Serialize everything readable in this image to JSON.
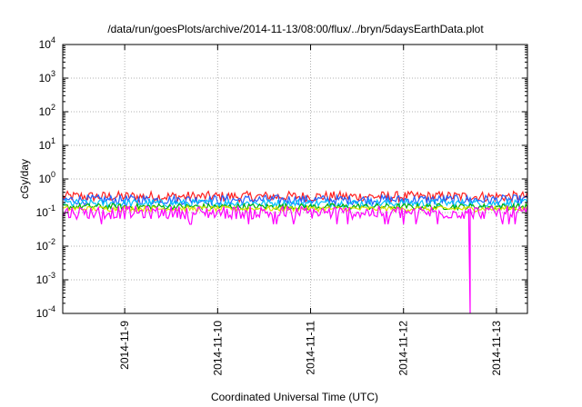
{
  "chart_data": {
    "type": "line",
    "title": "/data/run/goesPlots/archive/2014-11-13/08:00/flux/../bryn/5daysEarthData.plot",
    "xlabel": "Coordinated Universal Time (UTC)",
    "ylabel": "cGy/day",
    "yscale": "log",
    "ylim": [
      0.0001,
      10000
    ],
    "y_ticks": [
      {
        "value": 0.0001,
        "base": "10",
        "exp": "-4"
      },
      {
        "value": 0.001,
        "base": "10",
        "exp": "-3"
      },
      {
        "value": 0.01,
        "base": "10",
        "exp": "-2"
      },
      {
        "value": 0.1,
        "base": "10",
        "exp": "-1"
      },
      {
        "value": 1,
        "base": "10",
        "exp": "0"
      },
      {
        "value": 10,
        "base": "10",
        "exp": "1"
      },
      {
        "value": 100,
        "base": "10",
        "exp": "2"
      },
      {
        "value": 1000,
        "base": "10",
        "exp": "3"
      },
      {
        "value": 10000,
        "base": "10",
        "exp": "4"
      }
    ],
    "xlim": [
      "2014-11-08T08:00",
      "2014-11-13T08:00"
    ],
    "x_ticks": [
      "2014-11-9",
      "2014-11-10",
      "2014-11-11",
      "2014-11-12",
      "2014-11-13"
    ],
    "x_tick_times": [
      "2014-11-09T00:00",
      "2014-11-10T00:00",
      "2014-11-11T00:00",
      "2014-11-12T00:00",
      "2014-11-13T00:00"
    ],
    "grid": true,
    "legend": "none",
    "series": [
      {
        "color": "#ff2020",
        "level": 0.3,
        "spread": 0.12
      },
      {
        "color": "#2060ff",
        "level": 0.24,
        "spread": 0.11
      },
      {
        "color": "#00c0ff",
        "level": 0.19,
        "spread": 0.09
      },
      {
        "color": "#00b000",
        "level": 0.15,
        "spread": 0.07
      },
      {
        "color": "#e0e000",
        "level": 0.13,
        "spread": 0.06
      },
      {
        "color": "#ff00ff",
        "level": 0.1,
        "spread": 0.15
      }
    ],
    "annotations": [
      {
        "series": 5,
        "time": "2014-11-12T17:20",
        "value": 0.0001,
        "note": "dropout"
      }
    ]
  }
}
